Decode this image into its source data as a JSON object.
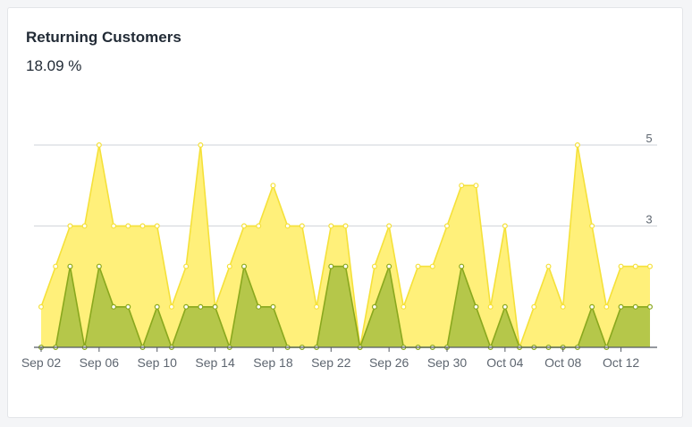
{
  "card": {
    "title": "Returning Customers",
    "metric_value": "18.09 %"
  },
  "colors": {
    "total_fill": "#fff07a",
    "total_stroke": "#f5e13a",
    "returning_fill": "#b5c74a",
    "returning_stroke": "#8aa81e",
    "gridline": "#cfd3d8",
    "axis": "#555b63"
  },
  "chart_data": {
    "type": "area",
    "x": [
      "Sep 02",
      "Sep 03",
      "Sep 04",
      "Sep 05",
      "Sep 06",
      "Sep 07",
      "Sep 08",
      "Sep 09",
      "Sep 10",
      "Sep 11",
      "Sep 12",
      "Sep 13",
      "Sep 14",
      "Sep 15",
      "Sep 16",
      "Sep 17",
      "Sep 18",
      "Sep 19",
      "Sep 20",
      "Sep 21",
      "Sep 22",
      "Sep 23",
      "Sep 24",
      "Sep 25",
      "Sep 26",
      "Sep 27",
      "Sep 28",
      "Sep 29",
      "Sep 30",
      "Oct 01",
      "Oct 02",
      "Oct 03",
      "Oct 04",
      "Oct 05",
      "Oct 06",
      "Oct 07",
      "Oct 08",
      "Oct 09",
      "Oct 10",
      "Oct 11",
      "Oct 12",
      "Oct 13",
      "Oct 14"
    ],
    "x_tick_labels": [
      "Sep 02",
      "Sep 06",
      "Sep 10",
      "Sep 14",
      "Sep 18",
      "Sep 22",
      "Sep 26",
      "Sep 30",
      "Oct 04",
      "Oct 08",
      "Oct 12"
    ],
    "series": [
      {
        "values": [
          1,
          2,
          3,
          3,
          5,
          3,
          3,
          3,
          3,
          1,
          2,
          5,
          1,
          2,
          3,
          3,
          4,
          3,
          3,
          1,
          3,
          3,
          0,
          2,
          3,
          1,
          2,
          2,
          3,
          4,
          4,
          1,
          3,
          0,
          1,
          2,
          1,
          5,
          3,
          1,
          2,
          2,
          2
        ]
      },
      {
        "values": [
          0,
          0,
          2,
          0,
          2,
          1,
          1,
          0,
          1,
          0,
          1,
          1,
          1,
          0,
          2,
          1,
          1,
          0,
          0,
          0,
          2,
          2,
          0,
          1,
          2,
          0,
          0,
          0,
          0,
          2,
          1,
          0,
          1,
          0,
          0,
          0,
          0,
          0,
          1,
          0,
          1,
          1,
          1
        ]
      }
    ],
    "y_tick_labels": [
      "3",
      "5"
    ],
    "y_ticks": [
      3,
      5
    ],
    "ylim": [
      0,
      5
    ],
    "grid": true
  }
}
